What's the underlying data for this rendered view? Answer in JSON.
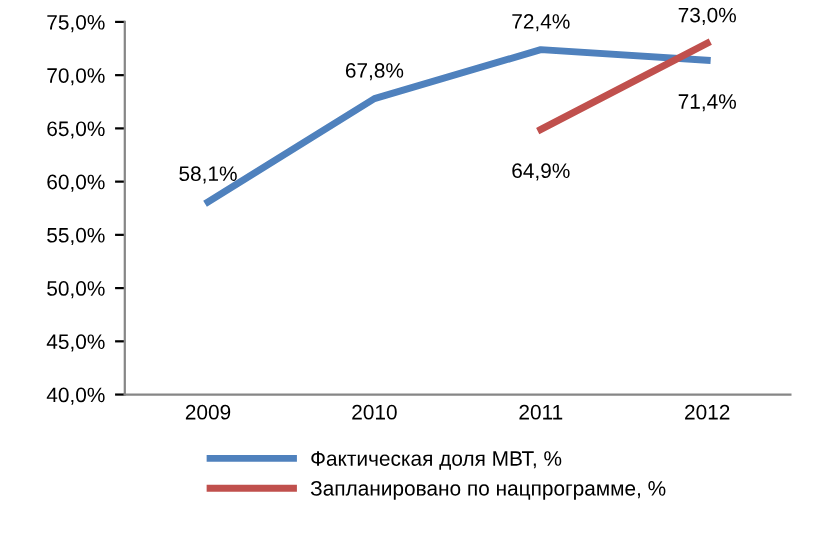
{
  "chart_data": {
    "type": "line",
    "categories": [
      "2009",
      "2010",
      "2011",
      "2012"
    ],
    "series": [
      {
        "name": "Фактическая доля МВТ, %",
        "color": "#4f81bd",
        "values": [
          58.1,
          67.8,
          72.4,
          71.4
        ],
        "value_labels": [
          "58,1%",
          "67,8%",
          "72,4%",
          "71,4%"
        ]
      },
      {
        "name": "Запланировано по нацпрограмме, %",
        "color": "#c0504d",
        "values": [
          null,
          null,
          64.9,
          73.0
        ],
        "value_labels": [
          null,
          null,
          "64,9%",
          "73,0%"
        ]
      }
    ],
    "ylim": [
      40,
      75
    ],
    "yticks": [
      {
        "value": 40,
        "label": "40,0%"
      },
      {
        "value": 45,
        "label": "45,0%"
      },
      {
        "value": 50,
        "label": "50,0%"
      },
      {
        "value": 55,
        "label": "55,0%"
      },
      {
        "value": 60,
        "label": "60,0%"
      },
      {
        "value": 65,
        "label": "65,0%"
      },
      {
        "value": 70,
        "label": "70,0%"
      },
      {
        "value": 75,
        "label": "75,0%"
      }
    ],
    "grid": false,
    "legend": "bottom",
    "marker": "none",
    "line_style": "solid"
  }
}
